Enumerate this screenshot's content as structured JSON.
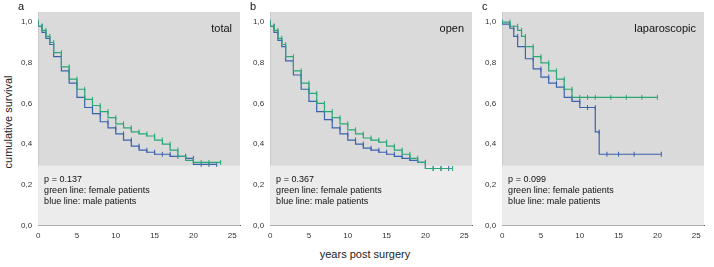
{
  "chart_data": [
    {
      "type": "line",
      "panel": "a",
      "title": "total",
      "ylabel": "cumulative survival",
      "annotations": [
        "p = 0.137",
        "green line: female patients",
        "blue line: male patients"
      ],
      "xlim": [
        0,
        26
      ],
      "xticks": [
        0,
        5,
        10,
        15,
        20,
        25
      ],
      "ylim": [
        0,
        1.05
      ],
      "yticks": [
        {
          "value": 0,
          "label": "0,0"
        },
        {
          "value": 0.2,
          "label": "0,2"
        },
        {
          "value": 0.4,
          "label": "0,4"
        },
        {
          "value": 0.6,
          "label": "0,6"
        },
        {
          "value": 0.8,
          "label": "0,8"
        },
        {
          "value": 1.0,
          "label": "1,0"
        }
      ],
      "grid": false,
      "marker": "|",
      "line_style": "steps",
      "series": [
        {
          "name": "female patients",
          "color": "#2aa876",
          "x": [
            0,
            0.5,
            1,
            1.5,
            2,
            3,
            4,
            5,
            6,
            7,
            8,
            9,
            10,
            11,
            12,
            13,
            14,
            15,
            16,
            17,
            18,
            19,
            20,
            21,
            22,
            23.5
          ],
          "values": [
            1.0,
            0.98,
            0.96,
            0.93,
            0.9,
            0.85,
            0.78,
            0.72,
            0.67,
            0.62,
            0.59,
            0.56,
            0.53,
            0.5,
            0.48,
            0.46,
            0.45,
            0.44,
            0.42,
            0.4,
            0.37,
            0.34,
            0.32,
            0.31,
            0.31,
            0.31
          ]
        },
        {
          "name": "male patients",
          "color": "#3b62ad",
          "x": [
            0,
            0.5,
            1,
            1.5,
            2,
            3,
            4,
            5,
            6,
            7,
            8,
            9,
            10,
            11,
            12,
            13,
            14,
            15,
            16,
            17,
            18,
            19,
            20,
            21,
            22,
            23
          ],
          "values": [
            1.0,
            0.98,
            0.95,
            0.92,
            0.89,
            0.83,
            0.76,
            0.7,
            0.63,
            0.58,
            0.55,
            0.51,
            0.48,
            0.45,
            0.42,
            0.39,
            0.37,
            0.36,
            0.35,
            0.35,
            0.34,
            0.34,
            0.33,
            0.3,
            0.3,
            0.3
          ]
        }
      ]
    },
    {
      "type": "line",
      "panel": "b",
      "title": "open",
      "xlabel": "years post surgery",
      "annotations": [
        "p = 0.367",
        "green line: female patients",
        "blue line: male patients"
      ],
      "xlim": [
        0,
        26
      ],
      "xticks": [
        0,
        5,
        10,
        15,
        20,
        25
      ],
      "ylim": [
        0,
        1.05
      ],
      "yticks": [
        {
          "value": 0,
          "label": "0,0"
        },
        {
          "value": 0.2,
          "label": "0,2"
        },
        {
          "value": 0.4,
          "label": "0,4"
        },
        {
          "value": 0.6,
          "label": "0,6"
        },
        {
          "value": 0.8,
          "label": "0,8"
        },
        {
          "value": 1.0,
          "label": "1,0"
        }
      ],
      "grid": false,
      "marker": "|",
      "line_style": "steps",
      "series": [
        {
          "name": "female patients",
          "color": "#2aa876",
          "x": [
            0,
            0.5,
            1,
            1.5,
            2,
            3,
            4,
            5,
            6,
            7,
            8,
            9,
            10,
            11,
            12,
            13,
            14,
            15,
            16,
            17,
            18,
            19,
            20,
            21,
            22,
            23.5
          ],
          "values": [
            1.0,
            0.98,
            0.96,
            0.92,
            0.89,
            0.83,
            0.76,
            0.7,
            0.65,
            0.6,
            0.56,
            0.53,
            0.5,
            0.47,
            0.45,
            0.43,
            0.42,
            0.41,
            0.39,
            0.37,
            0.35,
            0.33,
            0.31,
            0.28,
            0.28,
            0.28
          ]
        },
        {
          "name": "male patients",
          "color": "#3b62ad",
          "x": [
            0,
            0.5,
            1,
            1.5,
            2,
            3,
            4,
            5,
            6,
            7,
            8,
            9,
            10,
            11,
            12,
            13,
            14,
            15,
            16,
            17,
            18,
            19,
            20,
            21,
            22,
            23
          ],
          "values": [
            1.0,
            0.98,
            0.95,
            0.91,
            0.88,
            0.81,
            0.74,
            0.67,
            0.61,
            0.56,
            0.52,
            0.48,
            0.45,
            0.42,
            0.4,
            0.38,
            0.37,
            0.36,
            0.35,
            0.34,
            0.33,
            0.32,
            0.31,
            0.28,
            0.28,
            0.28
          ]
        }
      ]
    },
    {
      "type": "line",
      "panel": "c",
      "title": "laparoscopic",
      "annotations": [
        "p = 0.099",
        "green line: female patients",
        "blue line: male patients"
      ],
      "xlim": [
        0,
        26
      ],
      "xticks": [
        0,
        5,
        10,
        15,
        20,
        25
      ],
      "ylim": [
        0,
        1.05
      ],
      "yticks": [
        {
          "value": 0,
          "label": "0,0"
        },
        {
          "value": 0.2,
          "label": "0,2"
        },
        {
          "value": 0.4,
          "label": "0,4"
        },
        {
          "value": 0.6,
          "label": "0,6"
        },
        {
          "value": 0.8,
          "label": "0,8"
        },
        {
          "value": 1.0,
          "label": "1,0"
        }
      ],
      "grid": false,
      "marker": "|",
      "line_style": "steps",
      "series": [
        {
          "name": "female patients",
          "color": "#2aa876",
          "x": [
            0,
            1,
            2,
            2.5,
            3,
            4,
            5,
            6,
            7,
            8,
            9,
            10,
            11,
            12,
            14,
            16,
            18,
            20
          ],
          "values": [
            1.0,
            1.0,
            0.98,
            0.96,
            0.93,
            0.88,
            0.83,
            0.8,
            0.76,
            0.72,
            0.67,
            0.63,
            0.63,
            0.63,
            0.63,
            0.63,
            0.63,
            0.63
          ]
        },
        {
          "name": "male patients",
          "color": "#3b62ad",
          "x": [
            0,
            1,
            1.5,
            2,
            3,
            4,
            5,
            6,
            7,
            8,
            9,
            10,
            11,
            12,
            12.5,
            13.5,
            15,
            17,
            20.5
          ],
          "values": [
            1.0,
            0.99,
            0.97,
            0.93,
            0.88,
            0.82,
            0.77,
            0.73,
            0.7,
            0.68,
            0.63,
            0.61,
            0.58,
            0.58,
            0.46,
            0.35,
            0.35,
            0.35,
            0.35
          ]
        }
      ]
    }
  ]
}
